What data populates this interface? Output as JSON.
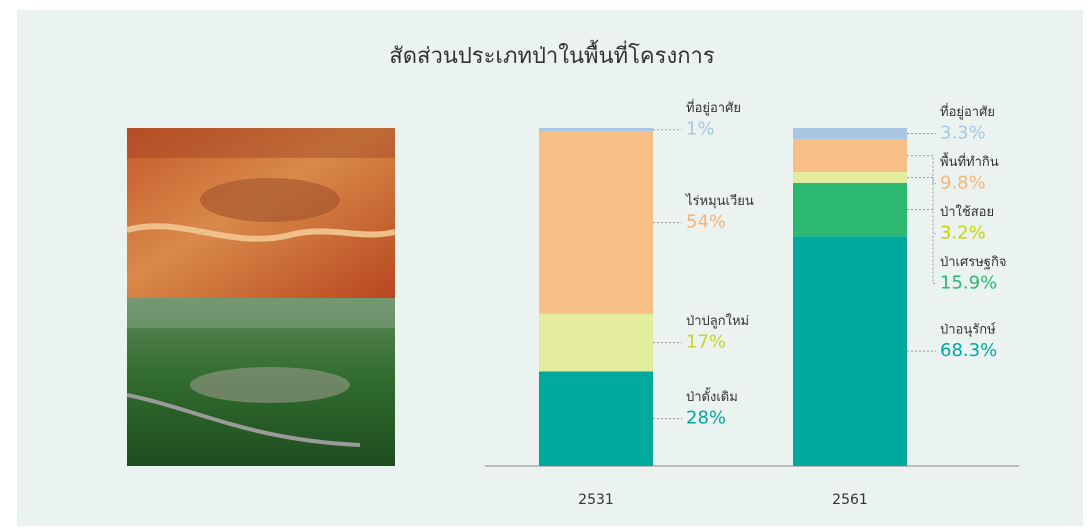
{
  "chart_data": {
    "type": "stacked-bar",
    "title": "สัดส่วนประเภทป่าในพื้นที่โครงการ",
    "categories": [
      "2531",
      "2561"
    ],
    "series": [
      {
        "name": "ป่าดั้งเดิม",
        "color": "#00a99d",
        "label_color": "#00a99d",
        "values": [
          28,
          null
        ],
        "value_labels": [
          "28%",
          null
        ]
      },
      {
        "name": "ป่าปลูกใหม่",
        "color": "#e4ec9e",
        "label_color": "#c9d32a",
        "values": [
          17,
          null
        ],
        "value_labels": [
          "17%",
          null
        ]
      },
      {
        "name": "ไร่หมุนเวียน",
        "color": "#f7bf85",
        "label_color": "#f5b57a",
        "values": [
          54,
          null
        ],
        "value_labels": [
          "54%",
          null
        ]
      },
      {
        "name": "ป่าอนุรักษ์",
        "color": "#00a99d",
        "label_color": "#00a99d",
        "values": [
          null,
          68.3
        ],
        "value_labels": [
          null,
          "68.3%"
        ]
      },
      {
        "name": "ป่าเศรษฐกิจ",
        "color": "#2db872",
        "label_color": "#2db872",
        "values": [
          null,
          15.9
        ],
        "value_labels": [
          null,
          "15.9%"
        ]
      },
      {
        "name": "ป่าใช้สอย",
        "color": "#e4ec9e",
        "label_color": "#c8d400",
        "values": [
          null,
          3.2
        ],
        "value_labels": [
          null,
          "3.2%"
        ]
      },
      {
        "name": "พื้นที่ทำกิน",
        "color": "#f7bf85",
        "label_color": "#f5b57a",
        "values": [
          null,
          9.8
        ],
        "value_labels": [
          null,
          "9.8%"
        ]
      },
      {
        "name": "ที่อยู่อาศัย",
        "color": "#a9c7e3",
        "label_color": "#a9c7e3",
        "values": [
          1,
          3.3
        ],
        "value_labels": [
          "1%",
          "3.3%"
        ]
      }
    ]
  }
}
